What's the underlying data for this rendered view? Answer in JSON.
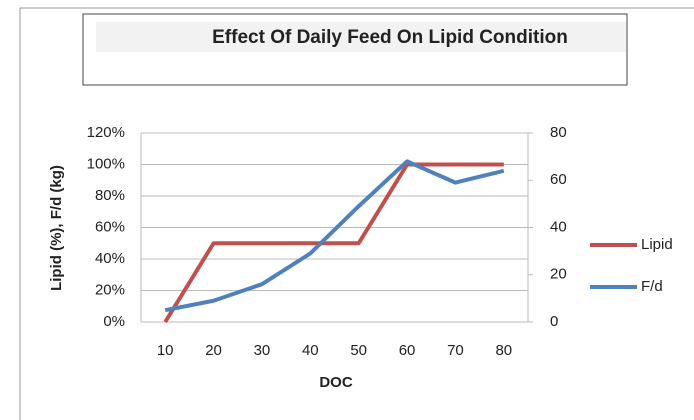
{
  "chart_data": {
    "type": "line",
    "title": "Effect Of Daily Feed On Lipid Condition",
    "x_label": "DOC",
    "y_label": "Lipid (%), F/d (kg)",
    "categories": [
      "10",
      "20",
      "30",
      "40",
      "50",
      "60",
      "70",
      "80"
    ],
    "series": [
      {
        "name": "Lipid",
        "color": "#c0504d",
        "values": [
          0,
          50,
          50,
          50,
          50,
          100,
          100,
          100
        ]
      },
      {
        "name": "F/d",
        "color": "#4f81bd",
        "axis": "y2",
        "values": [
          5,
          9,
          16,
          29,
          49,
          68,
          59,
          64
        ]
      }
    ],
    "ylim": [
      0,
      120
    ],
    "yticks": [
      {
        "value": 0,
        "label": "0%"
      },
      {
        "value": 20,
        "label": "20%"
      },
      {
        "value": 40,
        "label": "40%"
      },
      {
        "value": 60,
        "label": "60%"
      },
      {
        "value": 80,
        "label": "80%"
      },
      {
        "value": 100,
        "label": "100%"
      },
      {
        "value": 120,
        "label": "120%"
      }
    ],
    "y2lim": [
      0,
      80
    ],
    "y2ticks": [
      0,
      20,
      40,
      60,
      80
    ],
    "grid": true,
    "legend": "right"
  }
}
